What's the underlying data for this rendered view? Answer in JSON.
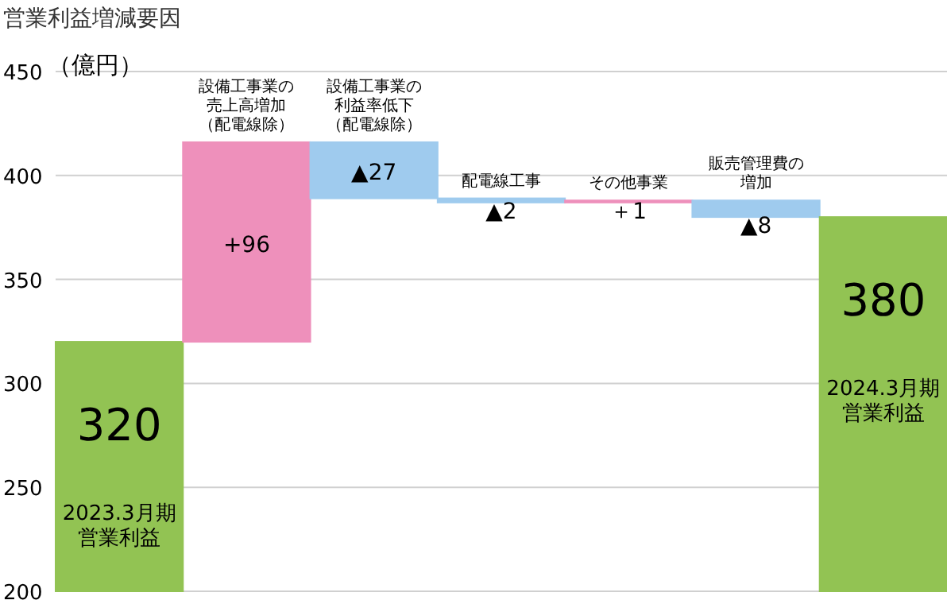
{
  "chart_data": {
    "type": "bar",
    "title": "営業利益増減要因",
    "ylabel": "（億円）",
    "categories": [
      "2023.3月期営業利益",
      "設備工事業の売上高増加（配電線除）",
      "設備工事業の利益率低下（配電線除）",
      "配電線工事",
      "その他事業",
      "販売管理費の増加",
      "2024.3月期営業利益"
    ],
    "values": [
      320,
      96,
      -27,
      -2,
      1,
      -8,
      380
    ],
    "base": [
      null,
      320,
      416,
      389,
      387,
      388,
      null
    ],
    "colors": [
      "#92c353",
      "#ee90bb",
      "#9fcbee",
      "#9fcbee",
      "#ee90bb",
      "#9fcbee",
      "#92c353"
    ],
    "value_labels": [
      "320",
      "+96",
      "▲27",
      "▲2",
      "＋1",
      "▲8",
      "380"
    ],
    "ylim": [
      200,
      450
    ],
    "yticks": [
      200,
      250,
      300,
      350,
      400,
      450
    ],
    "grid": "y"
  }
}
